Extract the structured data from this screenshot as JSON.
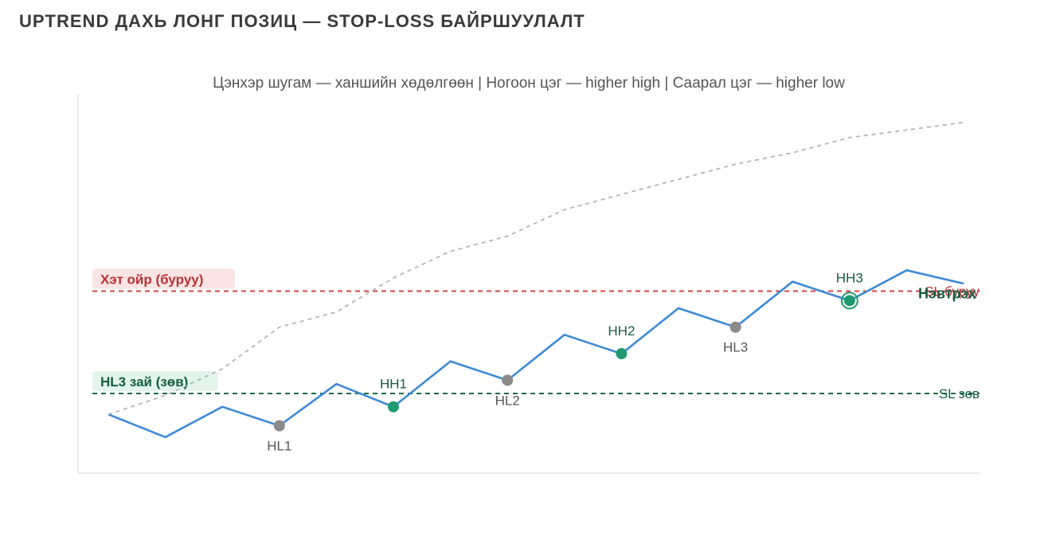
{
  "page": {
    "title": "UPTREND ДАХЬ ЛОНГ ПОЗИЦ — STOP-LOSS БАЙРШУУЛАЛТ"
  },
  "chart_data": {
    "type": "line",
    "subtitle": "Цэнхэр шугам — ханшийн хөдөлгөөн | Ногоон цэг — higher high | Саарал цэг — higher low",
    "xlabel": "",
    "ylabel": "",
    "xlim": [
      0,
      15
    ],
    "ylim": [
      0,
      100
    ],
    "grid": false,
    "series": [
      {
        "name": "",
        "style": "solid",
        "color": "#3d8ad6",
        "x": [
          0,
          1,
          2,
          3,
          4,
          5,
          6,
          7,
          8,
          9,
          10,
          11,
          12,
          13,
          14,
          15
        ],
        "y": [
          15.5,
          9.5,
          17.5,
          12.5,
          23.5,
          17.5,
          29.5,
          24.5,
          36.5,
          31.5,
          43.5,
          38.5,
          50.5,
          45.5,
          53.5,
          50
        ]
      },
      {
        "name": "",
        "style": "dashed",
        "color": "#b5b5b5",
        "x": [
          0,
          1,
          2,
          3,
          4,
          5,
          6,
          7,
          8,
          9,
          10,
          11,
          12,
          13,
          14,
          15
        ],
        "y": [
          15.5,
          20.5,
          27.5,
          38.5,
          42.5,
          51.5,
          58.5,
          62.5,
          69.5,
          73.5,
          77.5,
          81.5,
          84.5,
          88.5,
          90.5,
          92.5
        ]
      }
    ],
    "points": [
      {
        "label": "HL1",
        "kind": "higher-low",
        "x": 3,
        "y": 12.5,
        "label_position": "below",
        "color": "#8a8a8a"
      },
      {
        "label": "HH1",
        "kind": "higher-high",
        "x": 5,
        "y": 17.5,
        "label_position": "above",
        "color": "#1f9970"
      },
      {
        "label": "HL2",
        "kind": "higher-low",
        "x": 7,
        "y": 24.5,
        "label_position": "below",
        "color": "#8a8a8a"
      },
      {
        "label": "HH2",
        "kind": "higher-high",
        "x": 9,
        "y": 31.5,
        "label_position": "above",
        "color": "#1f9970"
      },
      {
        "label": "HL3",
        "kind": "higher-low",
        "x": 11,
        "y": 38.5,
        "label_position": "below",
        "color": "#8a8a8a"
      },
      {
        "label": "HH3",
        "kind": "higher-high",
        "x": 13,
        "y": 45.5,
        "label_position": "above",
        "color": "#1f9970",
        "ring": true
      }
    ],
    "hlines": [
      {
        "y": 48,
        "color": "#d64545",
        "text_color": "#b83232",
        "badge_bg": "#fbe4e4",
        "badge_label": "Хэт ойр (буруу)",
        "end_label": "SL буруу"
      },
      {
        "y": 21,
        "color": "#1e6b4a",
        "text_color": "#155d3f",
        "badge_bg": "#e2f4ec",
        "badge_label": "HL3 зай (зөв)",
        "end_label": "SL зөв"
      }
    ],
    "annotations": [
      {
        "text": "Нэвтрэх",
        "color": "#155d3f"
      }
    ]
  }
}
